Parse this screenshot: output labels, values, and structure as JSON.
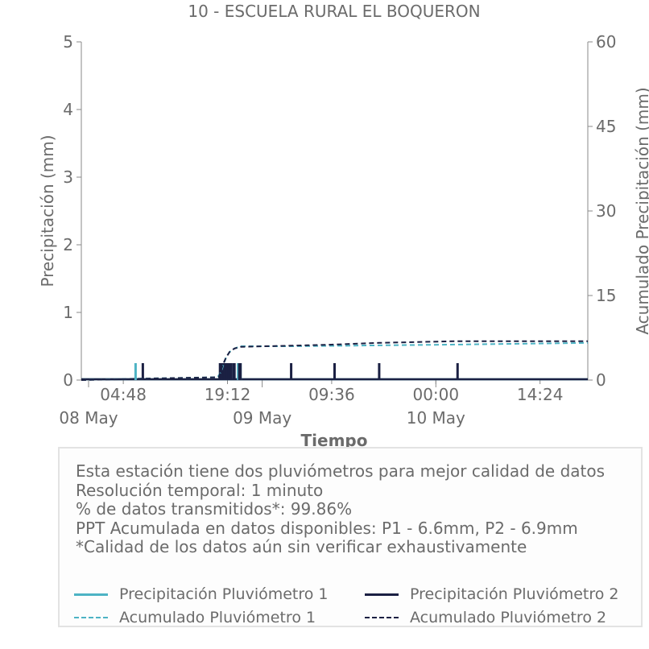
{
  "chart_data": {
    "type": "line",
    "title": "10 - ESCUELA RURAL EL BOQUERON",
    "xlabel": "Tiempo",
    "ylabel_left": "Precipitación (mm)",
    "ylabel_right": "Acumulado Precipitación (mm)",
    "ylim_left": [
      0,
      5
    ],
    "ylim_right": [
      0,
      60
    ],
    "yticks_left": [
      "0",
      "1",
      "2",
      "3",
      "4",
      "5"
    ],
    "yticks_right": [
      "0",
      "15",
      "30",
      "45",
      "60"
    ],
    "x_range": [
      "2023-05-07T23:00",
      "2023-05-10T21:00"
    ],
    "xticks_time": [
      "04:48",
      "19:12",
      "09:36",
      "00:00",
      "14:24"
    ],
    "xticks_time_positions": [
      "2023-05-08T04:48",
      "2023-05-08T19:12",
      "2023-05-09T09:36",
      "2023-05-10T00:00",
      "2023-05-10T14:24"
    ],
    "xticks_date": [
      "08 May",
      "09 May",
      "10 May"
    ],
    "xticks_date_positions": [
      "2023-05-08T00:00",
      "2023-05-09T00:00",
      "2023-05-10T00:00"
    ],
    "grid": false,
    "series": [
      {
        "name": "Precipitación Pluviómetro 1",
        "axis": "left",
        "color": "#4db3c4",
        "style": "solid",
        "points": [
          [
            "2023-05-08T06:30",
            0.25
          ],
          [
            "2023-05-08T18:15",
            0.25
          ],
          [
            "2023-05-08T18:35",
            0.25
          ],
          [
            "2023-05-08T19:00",
            0.25
          ],
          [
            "2023-05-08T19:40",
            0.25
          ],
          [
            "2023-05-08T20:40",
            0.25
          ],
          [
            "2023-05-08T21:00",
            0.25
          ]
        ]
      },
      {
        "name": "Precipitación Pluviómetro 2",
        "axis": "left",
        "color": "#1b2043",
        "style": "solid",
        "points": [
          [
            "2023-05-08T07:30",
            0.25
          ],
          [
            "2023-05-08T18:10",
            0.25
          ],
          [
            "2023-05-08T18:20",
            0.25
          ],
          [
            "2023-05-08T18:30",
            0.25
          ],
          [
            "2023-05-08T18:40",
            0.25
          ],
          [
            "2023-05-08T18:50",
            0.25
          ],
          [
            "2023-05-08T19:00",
            0.25
          ],
          [
            "2023-05-08T19:10",
            0.25
          ],
          [
            "2023-05-08T19:20",
            0.25
          ],
          [
            "2023-05-08T19:30",
            0.25
          ],
          [
            "2023-05-08T19:40",
            0.25
          ],
          [
            "2023-05-08T20:00",
            0.25
          ],
          [
            "2023-05-08T20:10",
            0.25
          ],
          [
            "2023-05-08T20:50",
            0.25
          ],
          [
            "2023-05-08T21:00",
            0.25
          ],
          [
            "2023-05-09T04:00",
            0.25
          ],
          [
            "2023-05-09T10:00",
            0.25
          ],
          [
            "2023-05-09T16:10",
            0.25
          ],
          [
            "2023-05-10T03:00",
            0.25
          ]
        ]
      },
      {
        "name": "Acumulado Pluviómetro 1",
        "axis": "right",
        "color": "#4db3c4",
        "style": "dashed",
        "points": [
          [
            "2023-05-07T23:00",
            0
          ],
          [
            "2023-05-08T06:30",
            0.25
          ],
          [
            "2023-05-08T17:50",
            0.5
          ],
          [
            "2023-05-08T18:20",
            1.5
          ],
          [
            "2023-05-08T18:40",
            2.8
          ],
          [
            "2023-05-08T19:00",
            4.0
          ],
          [
            "2023-05-08T19:30",
            5.0
          ],
          [
            "2023-05-08T20:10",
            5.6
          ],
          [
            "2023-05-08T21:00",
            6.0
          ],
          [
            "2023-05-09T04:00",
            6.0
          ],
          [
            "2023-05-10T03:00",
            6.3
          ],
          [
            "2023-05-10T21:00",
            6.6
          ]
        ]
      },
      {
        "name": "Acumulado Pluviómetro 2",
        "axis": "right",
        "color": "#1b2043",
        "style": "dashed",
        "points": [
          [
            "2023-05-07T23:00",
            0
          ],
          [
            "2023-05-08T07:30",
            0.25
          ],
          [
            "2023-05-08T18:00",
            0.5
          ],
          [
            "2023-05-08T18:30",
            2.5
          ],
          [
            "2023-05-08T19:00",
            4.0
          ],
          [
            "2023-05-08T19:30",
            5.0
          ],
          [
            "2023-05-08T20:10",
            5.6
          ],
          [
            "2023-05-08T21:00",
            5.9
          ],
          [
            "2023-05-09T04:00",
            6.1
          ],
          [
            "2023-05-09T10:00",
            6.3
          ],
          [
            "2023-05-09T16:10",
            6.6
          ],
          [
            "2023-05-10T03:00",
            6.9
          ],
          [
            "2023-05-10T21:00",
            6.9
          ]
        ]
      }
    ]
  },
  "info": {
    "line1": "Esta estación tiene dos pluviómetros para mejor calidad de datos",
    "line2": "Resolución temporal: 1 minuto",
    "line3": "% de datos transmitidos*: 99.86%",
    "line4": "PPT Acumulada en datos disponibles: P1 - 6.6mm, P2 - 6.9mm",
    "line5": "*Calidad de los datos aún sin verificar exhaustivamente"
  },
  "legend": {
    "p1": "Precipitación Pluviómetro 1",
    "p2": "Precipitación Pluviómetro 2",
    "a1": "Acumulado Pluviómetro 1",
    "a2": "Acumulado Pluviómetro 2"
  }
}
